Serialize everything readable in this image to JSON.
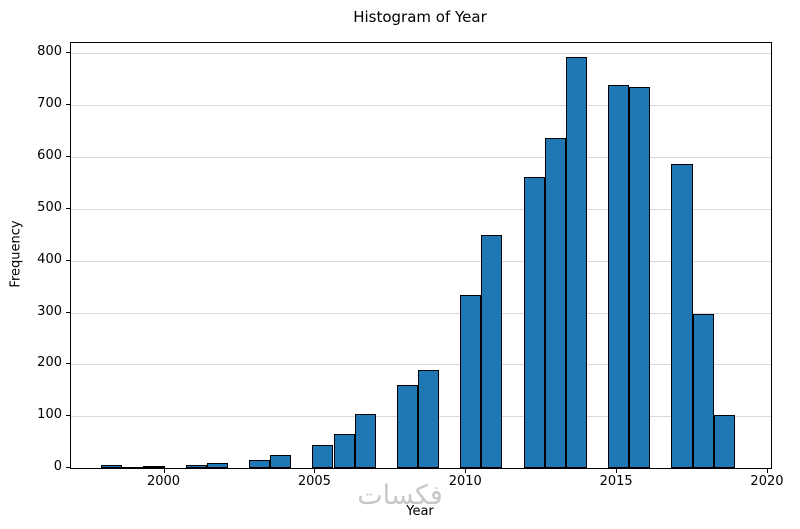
{
  "watermark": {
    "text": "فكسات",
    "color": "#c7c7c7"
  },
  "chart_data": {
    "type": "bar",
    "title": "Histogram of Year",
    "xlabel": "Year",
    "ylabel": "Frequency",
    "xlim": [
      1996.9,
      2020.1
    ],
    "ylim": [
      0,
      820
    ],
    "x_ticks": [
      2000,
      2005,
      2010,
      2015,
      2020
    ],
    "y_ticks": [
      0,
      100,
      200,
      300,
      400,
      500,
      600,
      700,
      800
    ],
    "grid": "horizontal",
    "legend": "none",
    "bar_color": "#1f77b4",
    "bar_edge_color": "#000000",
    "bins": [
      {
        "start": 1997.9,
        "end": 1998.6,
        "value": 5
      },
      {
        "start": 1998.6,
        "end": 1999.3,
        "value": 2
      },
      {
        "start": 1999.3,
        "end": 2000.0,
        "value": 3
      },
      {
        "start": 2000.0,
        "end": 2000.7,
        "value": 0
      },
      {
        "start": 2000.7,
        "end": 2001.4,
        "value": 5
      },
      {
        "start": 2001.4,
        "end": 2002.1,
        "value": 10
      },
      {
        "start": 2002.1,
        "end": 2002.8,
        "value": 0
      },
      {
        "start": 2002.8,
        "end": 2003.5,
        "value": 15
      },
      {
        "start": 2003.5,
        "end": 2004.2,
        "value": 25
      },
      {
        "start": 2004.2,
        "end": 2004.9,
        "value": 0
      },
      {
        "start": 2004.9,
        "end": 2005.6,
        "value": 45
      },
      {
        "start": 2005.6,
        "end": 2006.3,
        "value": 65
      },
      {
        "start": 2006.3,
        "end": 2007.0,
        "value": 105
      },
      {
        "start": 2007.0,
        "end": 2007.7,
        "value": 0
      },
      {
        "start": 2007.7,
        "end": 2008.4,
        "value": 160
      },
      {
        "start": 2008.4,
        "end": 2009.1,
        "value": 190
      },
      {
        "start": 2009.1,
        "end": 2009.8,
        "value": 0
      },
      {
        "start": 2009.8,
        "end": 2010.5,
        "value": 333
      },
      {
        "start": 2010.5,
        "end": 2011.2,
        "value": 450
      },
      {
        "start": 2011.2,
        "end": 2011.9,
        "value": 0
      },
      {
        "start": 2011.9,
        "end": 2012.6,
        "value": 562
      },
      {
        "start": 2012.6,
        "end": 2013.3,
        "value": 637
      },
      {
        "start": 2013.3,
        "end": 2014.0,
        "value": 793
      },
      {
        "start": 2014.0,
        "end": 2014.7,
        "value": 0
      },
      {
        "start": 2014.7,
        "end": 2015.4,
        "value": 739
      },
      {
        "start": 2015.4,
        "end": 2016.1,
        "value": 736
      },
      {
        "start": 2016.1,
        "end": 2016.8,
        "value": 0
      },
      {
        "start": 2016.8,
        "end": 2017.5,
        "value": 586
      },
      {
        "start": 2017.5,
        "end": 2018.2,
        "value": 297
      },
      {
        "start": 2018.2,
        "end": 2018.9,
        "value": 102
      }
    ]
  }
}
